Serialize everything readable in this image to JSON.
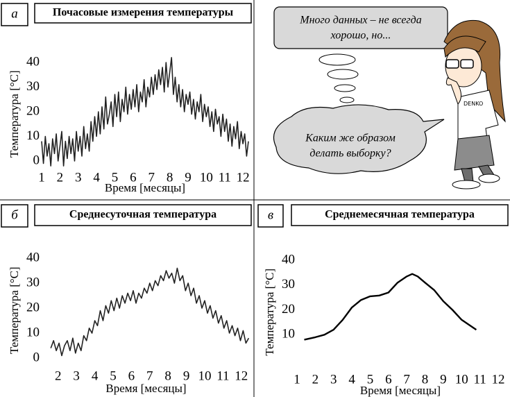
{
  "chart_data": [
    {
      "type": "line",
      "panel": "а",
      "title": "Почасовые измерения температуры",
      "xlabel": "Время [месяцы]",
      "ylabel": "Температура [°C]",
      "color": "#222222",
      "x": [
        1.0,
        1.1,
        1.2,
        1.3,
        1.4,
        1.5,
        1.6,
        1.7,
        1.8,
        1.9,
        2.0,
        2.1,
        2.2,
        2.3,
        2.4,
        2.5,
        2.6,
        2.7,
        2.8,
        2.9,
        3.0,
        3.1,
        3.2,
        3.3,
        3.4,
        3.5,
        3.6,
        3.7,
        3.8,
        3.9,
        4.0,
        4.1,
        4.2,
        4.3,
        4.4,
        4.5,
        4.6,
        4.7,
        4.8,
        4.9,
        5.0,
        5.1,
        5.2,
        5.3,
        5.4,
        5.5,
        5.6,
        5.7,
        5.8,
        5.9,
        6.0,
        6.1,
        6.2,
        6.3,
        6.4,
        6.5,
        6.6,
        6.7,
        6.8,
        6.9,
        7.0,
        7.1,
        7.2,
        7.3,
        7.4,
        7.5,
        7.6,
        7.7,
        7.8,
        7.9,
        8.0,
        8.1,
        8.2,
        8.3,
        8.4,
        8.5,
        8.6,
        8.7,
        8.8,
        8.9,
        9.0,
        9.1,
        9.2,
        9.3,
        9.4,
        9.5,
        9.6,
        9.7,
        9.8,
        9.9,
        10.0,
        10.1,
        10.2,
        10.3,
        10.4,
        10.5,
        10.6,
        10.7,
        10.8,
        10.9,
        11.0,
        11.1,
        11.2,
        11.3,
        11.4,
        11.5,
        11.6,
        11.7,
        11.8,
        11.9,
        12.0,
        12.1,
        12.2,
        12.3
      ],
      "values": [
        8,
        -1,
        10,
        2,
        7,
        -2,
        9,
        3,
        11,
        0,
        6,
        12,
        -2,
        8,
        1,
        10,
        3,
        9,
        0,
        12,
        4,
        10,
        2,
        14,
        5,
        11,
        4,
        16,
        8,
        18,
        10,
        20,
        11,
        22,
        13,
        26,
        15,
        19,
        24,
        14,
        27,
        18,
        28,
        16,
        25,
        20,
        30,
        19,
        27,
        21,
        29,
        22,
        31,
        20,
        28,
        24,
        33,
        22,
        30,
        26,
        34,
        27,
        35,
        29,
        37,
        31,
        38,
        28,
        40,
        30,
        36,
        42,
        27,
        34,
        24,
        31,
        22,
        29,
        20,
        27,
        23,
        28,
        19,
        25,
        17,
        24,
        20,
        27,
        16,
        23,
        18,
        22,
        14,
        20,
        12,
        21,
        15,
        18,
        10,
        19,
        12,
        17,
        8,
        15,
        6,
        14,
        9,
        16,
        5,
        12,
        7,
        11,
        2,
        8
      ],
      "xlim": [
        1,
        12.3
      ],
      "ylim": [
        -3,
        44
      ],
      "xticks": [
        1,
        2,
        3,
        4,
        5,
        6,
        7,
        8,
        9,
        10,
        11,
        12
      ],
      "yticks": [
        0,
        10,
        20,
        30,
        40
      ]
    },
    {
      "type": "line",
      "panel": "б",
      "title": "Среднесуточная температура",
      "xlabel": "Время [месяцы]",
      "ylabel": "Температура [°C]",
      "color": "#222222",
      "x": [
        1.6,
        1.75,
        1.9,
        2.05,
        2.2,
        2.35,
        2.5,
        2.65,
        2.8,
        2.95,
        3.1,
        3.25,
        3.4,
        3.55,
        3.7,
        3.85,
        4.0,
        4.15,
        4.3,
        4.45,
        4.6,
        4.75,
        4.9,
        5.05,
        5.2,
        5.35,
        5.5,
        5.65,
        5.8,
        5.95,
        6.1,
        6.25,
        6.4,
        6.55,
        6.7,
        6.85,
        7.0,
        7.15,
        7.3,
        7.45,
        7.6,
        7.75,
        7.9,
        8.05,
        8.2,
        8.35,
        8.5,
        8.65,
        8.8,
        8.95,
        9.1,
        9.25,
        9.4,
        9.55,
        9.7,
        9.85,
        10.0,
        10.15,
        10.3,
        10.45,
        10.6,
        10.75,
        10.9,
        11.05,
        11.2,
        11.35,
        11.5,
        11.65,
        11.8,
        11.95,
        12.1,
        12.25,
        12.4
      ],
      "values": [
        4,
        7,
        3,
        6,
        1,
        5,
        7,
        3,
        8,
        2,
        6,
        3,
        9,
        7,
        12,
        10,
        15,
        13,
        19,
        15,
        21,
        18,
        23,
        19,
        24,
        20,
        25,
        22,
        26,
        23,
        27,
        22,
        26,
        24,
        28,
        26,
        30,
        27,
        31,
        29,
        33,
        31,
        35,
        32,
        34,
        30,
        36,
        31,
        33,
        27,
        30,
        25,
        28,
        22,
        25,
        20,
        23,
        18,
        21,
        16,
        19,
        14,
        17,
        12,
        15,
        10,
        13,
        9,
        12,
        7,
        11,
        6,
        8
      ],
      "xlim": [
        1.1,
        12.5
      ],
      "ylim": [
        -2,
        43
      ],
      "xticks": [
        2,
        3,
        4,
        5,
        6,
        7,
        8,
        9,
        10,
        11,
        12
      ],
      "yticks": [
        0,
        10,
        20,
        30,
        40
      ]
    },
    {
      "type": "line",
      "panel": "в",
      "title": "Среднемесячная температура",
      "xlabel": "Время [месяцы]",
      "ylabel": "Температура [°C]",
      "color": "#000000",
      "x": [
        1.4,
        2.0,
        2.5,
        3.0,
        3.5,
        4.0,
        4.5,
        5.0,
        5.5,
        6.0,
        6.5,
        7.0,
        7.3,
        7.6,
        8.0,
        8.5,
        9.0,
        9.5,
        10.0,
        10.8
      ],
      "values": [
        8,
        9,
        10,
        12,
        16,
        21,
        24,
        25.5,
        25.8,
        27,
        31,
        33.5,
        34.5,
        33.5,
        31,
        28,
        23.5,
        20,
        16,
        12
      ],
      "xlim": [
        1,
        12.3
      ],
      "ylim": [
        -2,
        43
      ],
      "xticks": [
        1,
        2,
        3,
        4,
        5,
        6,
        7,
        8,
        9,
        10,
        11,
        12
      ],
      "yticks": [
        10,
        20,
        30,
        40
      ]
    }
  ],
  "cartoon": {
    "thought": [
      "Много данных – не всегда",
      "хорошо, но..."
    ],
    "speech": [
      "Каким же образом",
      "делать выборку?"
    ],
    "shirt_logo": "DENKO"
  }
}
